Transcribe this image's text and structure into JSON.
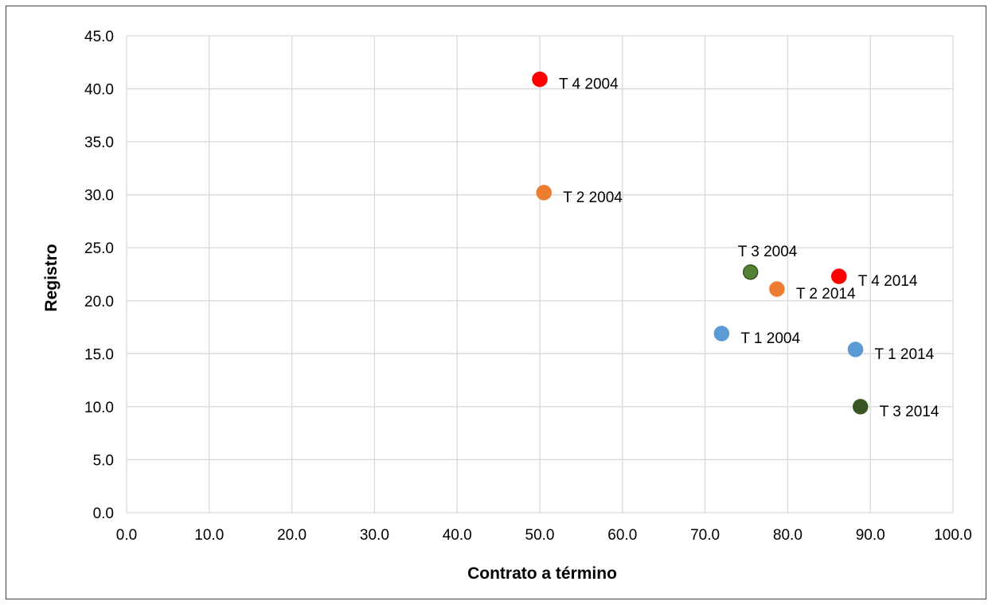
{
  "chart_data": {
    "type": "scatter",
    "xlabel": "Contrato a término",
    "ylabel": "Registro",
    "xlim": [
      0,
      100
    ],
    "ylim": [
      0,
      45
    ],
    "xticks": [
      "0.0",
      "10.0",
      "20.0",
      "30.0",
      "40.0",
      "50.0",
      "60.0",
      "70.0",
      "80.0",
      "90.0",
      "100.0"
    ],
    "yticks": [
      "0.0",
      "5.0",
      "10.0",
      "15.0",
      "20.0",
      "25.0",
      "30.0",
      "35.0",
      "40.0",
      "45.0"
    ],
    "grid": true,
    "legend": "none",
    "points": [
      {
        "label": "T 4 2004",
        "x": 50.0,
        "y": 40.9,
        "color": "#ff0000"
      },
      {
        "label": "T 2 2004",
        "x": 50.5,
        "y": 30.2,
        "color": "#ed7d31"
      },
      {
        "label": "T 3 2004",
        "x": 75.5,
        "y": 22.7,
        "color": "#548235"
      },
      {
        "label": "T 4 2014",
        "x": 86.2,
        "y": 22.3,
        "color": "#ff0000"
      },
      {
        "label": "T 2 2014",
        "x": 78.7,
        "y": 21.1,
        "color": "#ed7d31"
      },
      {
        "label": "T 1 2004",
        "x": 72.0,
        "y": 16.9,
        "color": "#5b9bd5"
      },
      {
        "label": "T 1 2014",
        "x": 88.2,
        "y": 15.4,
        "color": "#5b9bd5"
      },
      {
        "label": "T 3 2014",
        "x": 88.8,
        "y": 10.0,
        "color": "#375623"
      }
    ]
  }
}
